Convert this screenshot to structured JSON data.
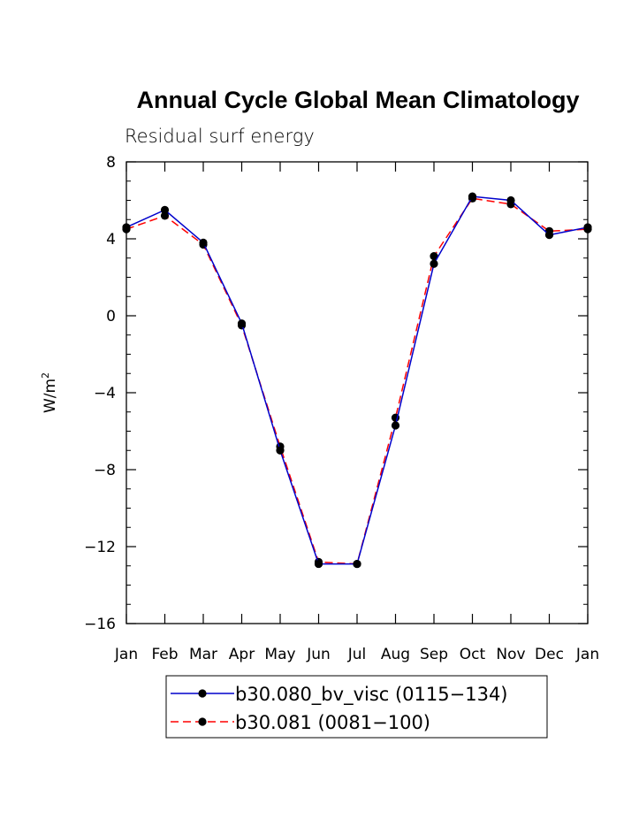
{
  "chart_data": {
    "type": "line",
    "title": "Annual Cycle Global Mean Climatology",
    "subtitle": "Residual surf energy",
    "xlabel": "",
    "ylabel": "W/m",
    "ylabel_superscript": "2",
    "categories": [
      "Jan",
      "Feb",
      "Mar",
      "Apr",
      "May",
      "Jun",
      "Jul",
      "Aug",
      "Sep",
      "Oct",
      "Nov",
      "Dec",
      "Jan"
    ],
    "yticks": [
      8,
      4,
      0,
      -4,
      -8,
      -12,
      -16
    ],
    "ylim": [
      -16,
      8
    ],
    "grid": false,
    "legend_position": "bottom",
    "series": [
      {
        "name": "b30.080_bv_visc (0115−134)",
        "color": "#0000cc",
        "dash": "solid",
        "values": [
          4.6,
          5.5,
          3.8,
          -0.4,
          -7.0,
          -12.9,
          -12.9,
          -5.7,
          2.7,
          6.2,
          6.0,
          4.2,
          4.6
        ]
      },
      {
        "name": "b30.081 (0081−100)",
        "color": "#ff0000",
        "dash": "dashed",
        "values": [
          4.5,
          5.2,
          3.7,
          -0.5,
          -6.8,
          -12.8,
          -12.9,
          -5.3,
          3.1,
          6.1,
          5.8,
          4.4,
          4.5
        ]
      }
    ]
  }
}
